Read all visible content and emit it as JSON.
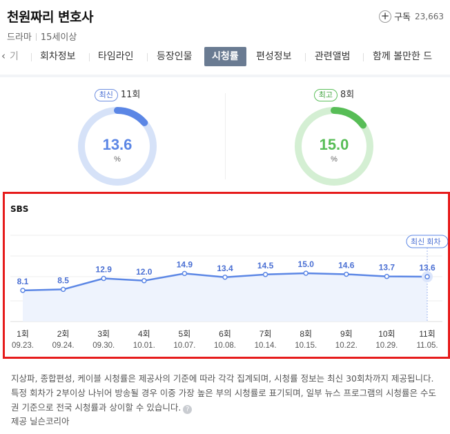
{
  "header": {
    "title": "천원짜리 변호사",
    "genre": "드라마",
    "rating": "15세이상",
    "subscribe_label": "구독",
    "subscribe_count": "23,663"
  },
  "tabs": {
    "prev_label": "‹",
    "partial_first": "기",
    "items": [
      "회차정보",
      "타임라인",
      "등장인물",
      "시청률",
      "편성정보",
      "관련앨범",
      "함께 볼만한 드"
    ],
    "active": "시청률"
  },
  "summary": {
    "latest": {
      "badge": "최신",
      "episode": "11회",
      "value": "13.6",
      "unit": "%",
      "fraction": 0.136,
      "color": "#5b86e5",
      "track": "#d6e2f8"
    },
    "highest": {
      "badge": "최고",
      "episode": "8회",
      "value": "15.0",
      "unit": "%",
      "fraction": 0.15,
      "color": "#57bd56",
      "track": "#d4efd3"
    }
  },
  "chart_data": {
    "type": "line",
    "title": "SBS",
    "series": [
      {
        "values": [
          8.1,
          8.5,
          12.9,
          12.0,
          14.9,
          13.4,
          14.5,
          15.0,
          14.6,
          13.7,
          13.6
        ]
      }
    ],
    "episodes": [
      "1회",
      "2회",
      "3회",
      "4회",
      "5회",
      "6회",
      "7회",
      "8회",
      "9회",
      "10회",
      "11회"
    ],
    "dates": [
      "09.23.",
      "09.24.",
      "09.30.",
      "10.01.",
      "10.07.",
      "10.08.",
      "10.14.",
      "10.15.",
      "10.22.",
      "10.29.",
      "11.05."
    ],
    "latest_tag": "최신 회차",
    "line_color": "#5b86e5",
    "fill_color": "#eef3fd",
    "grid": true
  },
  "footer": {
    "note": "지상파, 종합편성, 케이블 시청률은 제공사의 기준에 따라 각각 집계되며, 시청률 정보는 최신 30회차까지 제공됩니다. 특정 회차가 2부이상 나뉘어 방송될 경우 이중 가장 높은 부의 시청률로 표기되며, 일부 뉴스 프로그램의 시청률은 수도권 기준으로 전국 시청률과 상이할 수 있습니다.",
    "help_icon": "question-circle-icon",
    "provider": "제공 닐슨코리아"
  }
}
